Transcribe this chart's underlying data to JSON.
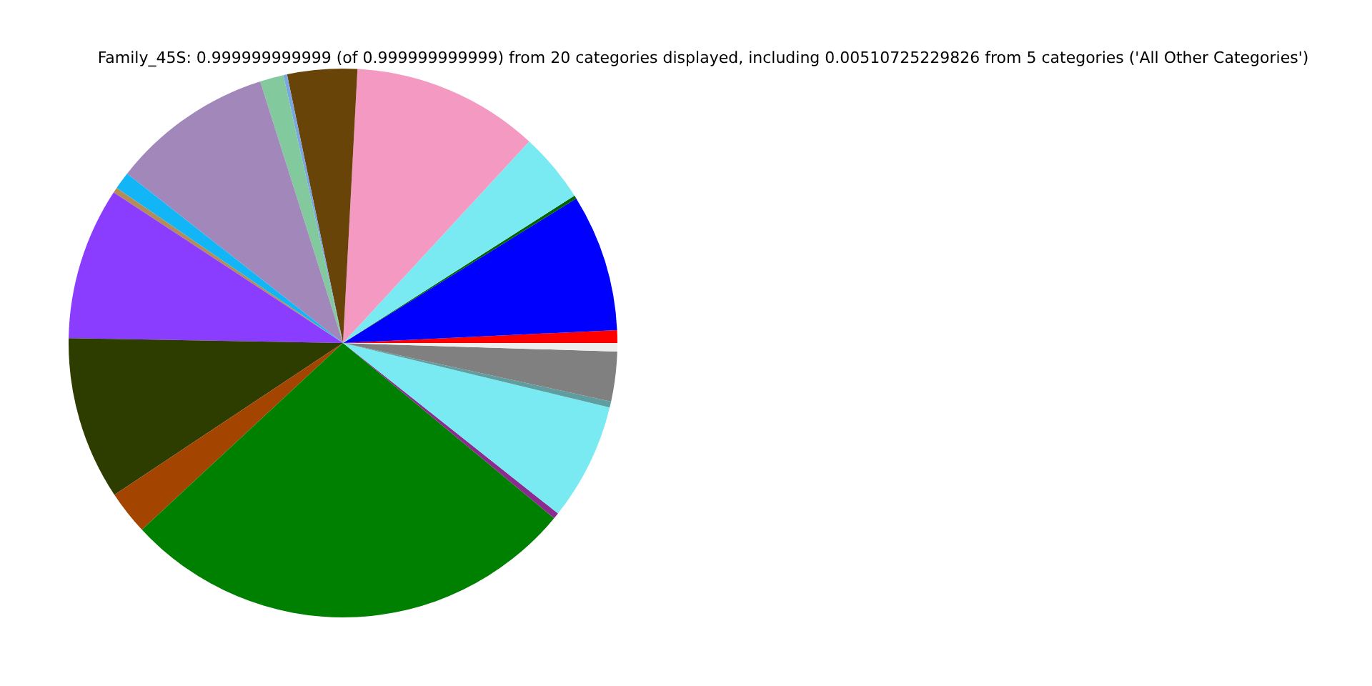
{
  "chart_data": {
    "type": "pie",
    "title": "Family_45S: 0.999999999999 (of 0.999999999999) from 20 categories displayed, including 0.00510725229826 from 5 categories ('All Other Categories')",
    "categories": [
      null,
      null,
      null,
      null,
      null,
      null,
      null,
      null,
      null,
      null,
      null,
      null,
      null,
      null,
      null,
      null,
      null,
      null,
      null,
      null
    ],
    "values": [
      0.75,
      8.08,
      0.19,
      4.11,
      11.03,
      4.11,
      0.22,
      1.39,
      9.53,
      1.03,
      0.31,
      8.97,
      9.61,
      2.58,
      27.06,
      0.36,
      6.89,
      0.36,
      2.92,
      0.5
    ],
    "colors": [
      "#ff0000",
      "#0000ff",
      "#006400",
      "#7aeaf2",
      "#f49ac2",
      "#694409",
      "#7ba7e0",
      "#82ca9d",
      "#a287bb",
      "#12b5f5",
      "#b48c5a",
      "#8b3dff",
      "#2d3d00",
      "#a34500",
      "#008000",
      "#8b2a8f",
      "#7aeaf2",
      "#5f9ea0",
      "#808080",
      "#eeeeee"
    ],
    "legend": false
  }
}
